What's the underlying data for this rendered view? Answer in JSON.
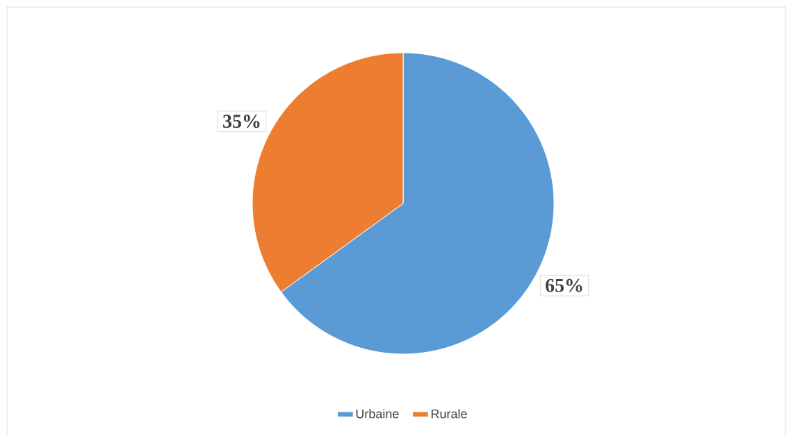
{
  "chart_data": {
    "type": "pie",
    "categories": [
      "Urbaine",
      "Rurale"
    ],
    "values": [
      65,
      35
    ],
    "colors": [
      "#5b9bd5",
      "#ed7d31"
    ],
    "value_labels": [
      "65%",
      "35%"
    ],
    "legend": "bottom"
  }
}
